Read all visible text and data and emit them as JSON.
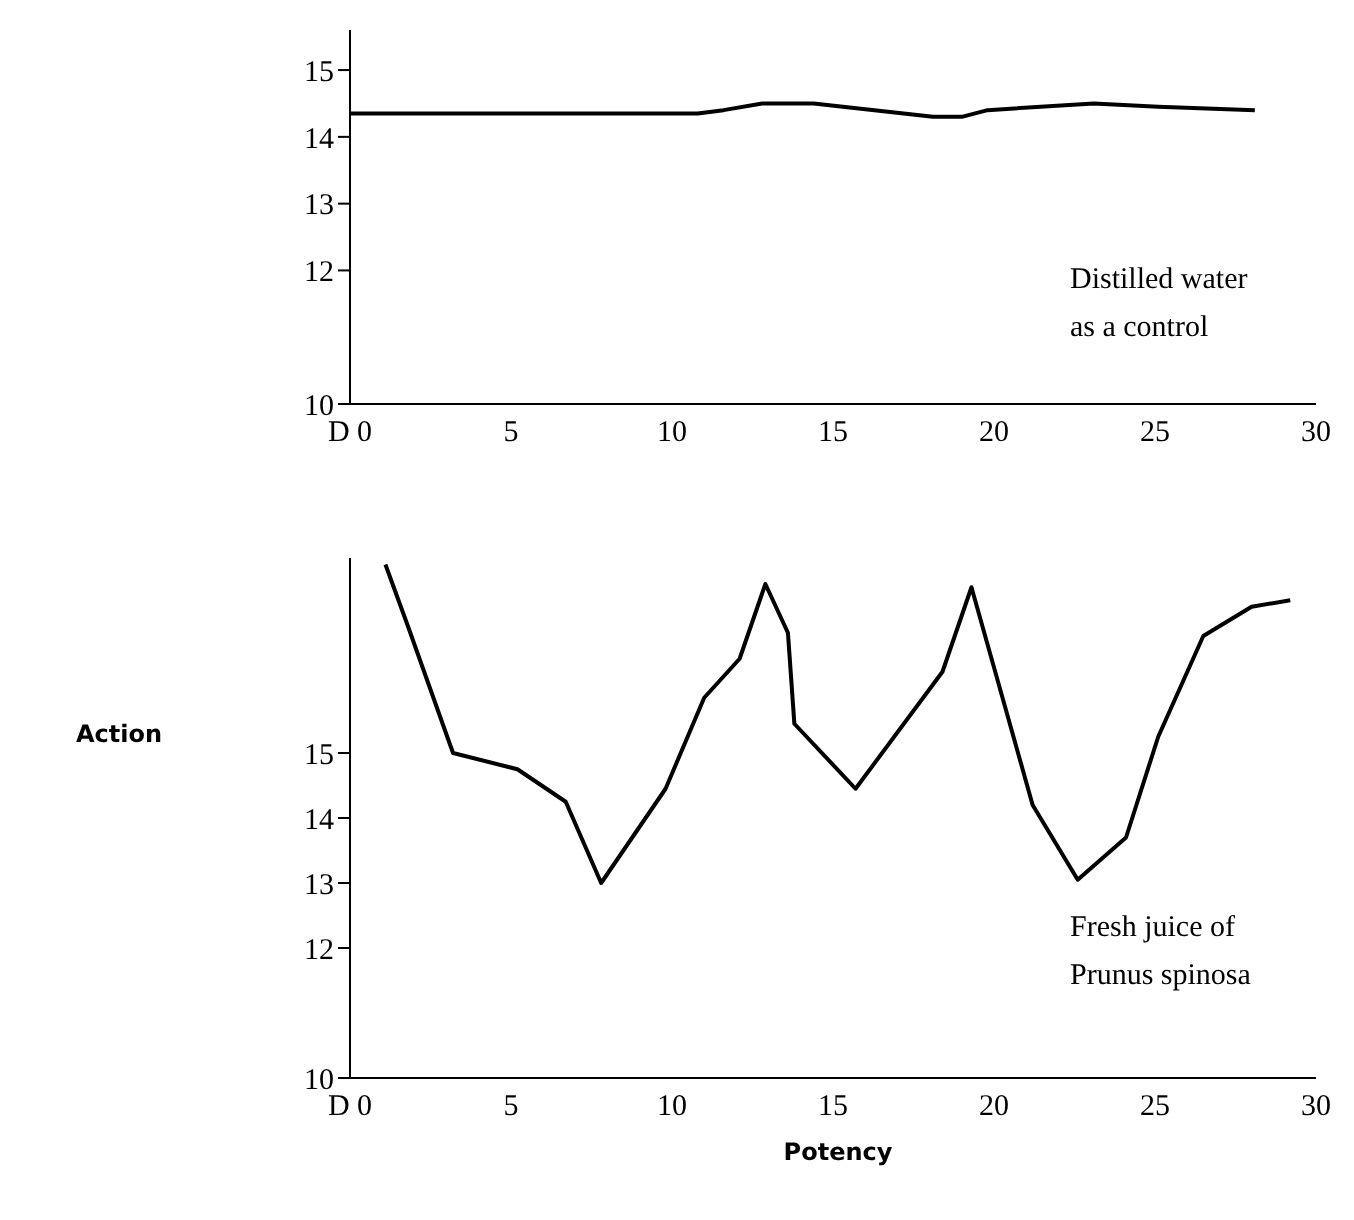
{
  "chart_data": [
    {
      "type": "line",
      "x": [
        0,
        10.8,
        11.6,
        12.8,
        14.4,
        18.1,
        19,
        19.8,
        23.1,
        25.1,
        28.1
      ],
      "values": [
        14.35,
        14.35,
        14.4,
        14.5,
        14.5,
        14.3,
        14.3,
        14.4,
        14.5,
        14.45,
        14.4
      ],
      "color": "#000000",
      "xlim": [
        0,
        30
      ],
      "xticks": [
        {
          "value": 0,
          "label": "D 0"
        },
        5,
        10,
        15,
        20,
        25,
        30
      ],
      "ylim": [
        10,
        15.6
      ],
      "yticks": [
        10,
        12,
        13,
        14,
        15
      ],
      "annotations": [
        "Distilled water\nas a control"
      ]
    },
    {
      "type": "line",
      "x": [
        1.1,
        1.8,
        3.2,
        5.2,
        6.7,
        7.8,
        9.8,
        11,
        12.1,
        12.9,
        13.6,
        13.8,
        15.7,
        18.4,
        19.3,
        21.2,
        22.6,
        24.1,
        25.1,
        26.5,
        28,
        29.2
      ],
      "values": [
        17.9,
        16.95,
        15,
        14.75,
        14.25,
        13,
        14.45,
        15.85,
        16.45,
        17.6,
        16.85,
        15.45,
        14.45,
        16.25,
        17.55,
        14.2,
        13.05,
        13.7,
        15.25,
        16.8,
        17.25,
        17.35
      ],
      "color": "#000000",
      "xlim": [
        0,
        30
      ],
      "xticks": [
        {
          "value": 0,
          "label": "D 0"
        },
        5,
        10,
        15,
        20,
        25,
        30
      ],
      "ylim": [
        10,
        18
      ],
      "yticks": [
        10,
        12,
        13,
        14,
        15
      ],
      "ylabel": "Action",
      "xlabel": "Potency",
      "annotations": [
        "Fresh juice of\nPrunus spinosa"
      ]
    }
  ]
}
